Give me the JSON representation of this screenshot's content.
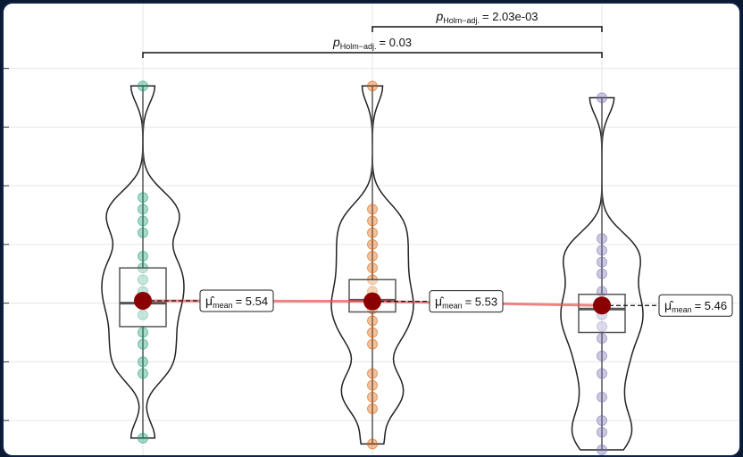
{
  "chart_data": {
    "type": "violin",
    "title": "",
    "xlabel": "",
    "ylabel": "",
    "ylim": [
      3,
      10.3
    ],
    "y_ticks": [
      3.5,
      4.5,
      5.5,
      6.5,
      7.5,
      8.5,
      9.5
    ],
    "grid": true,
    "groups": [
      {
        "color": "#1b9e77",
        "points": [
          9.2,
          7.3,
          7.1,
          6.9,
          6.7,
          6.3,
          6.1,
          5.9,
          5.7,
          5.5,
          5.3,
          5.0,
          4.8,
          4.5,
          4.3,
          3.2
        ],
        "q1": 5.1,
        "median": 5.5,
        "q3": 6.1,
        "whisker_low": 3.2,
        "whisker_high": 9.2,
        "mean": 5.54,
        "mean_label": "= 5.54"
      },
      {
        "color": "#d95f02",
        "points": [
          9.2,
          7.1,
          6.9,
          6.7,
          6.5,
          6.3,
          6.1,
          5.9,
          5.7,
          5.5,
          5.4,
          5.2,
          5.0,
          4.8,
          4.3,
          4.1,
          3.9,
          3.7,
          3.1
        ],
        "q1": 5.35,
        "median": 5.55,
        "q3": 5.9,
        "whisker_low": 3.1,
        "whisker_high": 9.2,
        "mean": 5.53,
        "mean_label": "= 5.53"
      },
      {
        "color": "#7570b3",
        "points": [
          9.0,
          6.6,
          6.4,
          6.2,
          6.0,
          5.7,
          5.5,
          5.3,
          5.1,
          4.9,
          4.6,
          4.3,
          3.9,
          3.5,
          3.3,
          3.0
        ],
        "q1": 5.0,
        "median": 5.4,
        "q3": 5.65,
        "whisker_low": 3.0,
        "whisker_high": 9.0,
        "mean": 5.46,
        "mean_label": "= 5.46"
      }
    ],
    "mean_symbol": "μ̂",
    "mean_subscript": "mean",
    "comparisons": [
      {
        "from": 2,
        "to": 3,
        "p_italic": "p",
        "p_sub": "Holm−adj.",
        "p_value": "= 2.03e-03"
      },
      {
        "from": 1,
        "to": 3,
        "p_italic": "p",
        "p_sub": "Holm−adj.",
        "p_value": "= 0.03"
      }
    ]
  }
}
